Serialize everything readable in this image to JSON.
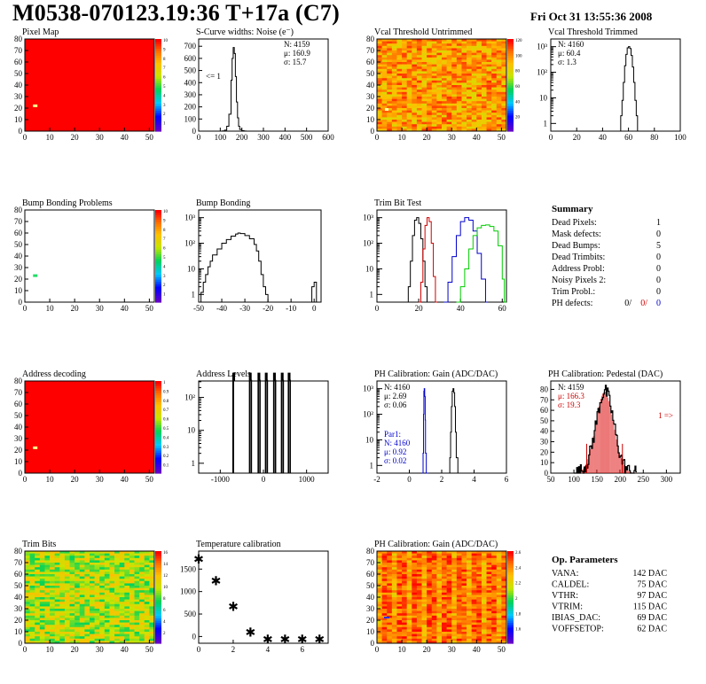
{
  "header": {
    "title": "M0538-070123.19:36 T+17a (C7)",
    "date": "Fri Oct 31 13:55:36 2008"
  },
  "colors": {
    "map_red": "#ff0000",
    "hist_red": "#d00000",
    "hist_blue": "#0000cc",
    "hist_green": "#00cc00"
  },
  "chart_data": [
    {
      "id": "pixel-map",
      "type": "heatmap",
      "title": "Pixel Map",
      "x_ticks": [
        "0",
        "10",
        "20",
        "30",
        "40",
        "50"
      ],
      "y_ticks": [
        "0",
        "10",
        "20",
        "30",
        "40",
        "50",
        "60",
        "70",
        "80"
      ],
      "xlim": [
        0,
        52
      ],
      "ylim": [
        0,
        80
      ],
      "fill": "uniform-red",
      "defects": [
        {
          "x": 4,
          "y": 22
        }
      ],
      "colorbar_ticks": [
        "1",
        "2",
        "3",
        "4",
        "5",
        "6",
        "7",
        "8",
        "9",
        "10"
      ]
    },
    {
      "id": "scurve-noise",
      "type": "line",
      "title": "S-Curve widths: Noise (e⁻)",
      "x_ticks": [
        "0",
        "100",
        "200",
        "300",
        "400",
        "500",
        "600"
      ],
      "y_ticks": [
        "0",
        "100",
        "200",
        "300",
        "400",
        "500",
        "600",
        "700"
      ],
      "xlim": [
        0,
        600
      ],
      "ylim": [
        0,
        760
      ],
      "stats": [
        "N: 4159",
        "μ: 160.9",
        "σ: 15.7"
      ],
      "annotation": "<= 1",
      "x": [
        100,
        110,
        120,
        130,
        140,
        150,
        155,
        160,
        165,
        170,
        175,
        180,
        185,
        190,
        200,
        210,
        220,
        230,
        240
      ],
      "y": [
        0,
        2,
        8,
        40,
        140,
        420,
        600,
        690,
        640,
        450,
        240,
        110,
        40,
        14,
        4,
        1,
        0,
        0,
        0
      ]
    },
    {
      "id": "vcal-untrimmed",
      "type": "heatmap",
      "title": "Vcal Threshold Untrimmed",
      "x_ticks": [
        "0",
        "10",
        "20",
        "30",
        "40",
        "50"
      ],
      "y_ticks": [
        "0",
        "10",
        "20",
        "30",
        "40",
        "50",
        "60",
        "70",
        "80"
      ],
      "xlim": [
        0,
        52
      ],
      "ylim": [
        0,
        80
      ],
      "colorbar_ticks": [
        "20",
        "40",
        "60",
        "80",
        "100",
        "120"
      ]
    },
    {
      "id": "vcal-trimmed",
      "type": "line",
      "title": "Vcal Threshold Trimmed",
      "log_y": true,
      "x_ticks": [
        "0",
        "20",
        "40",
        "60",
        "80",
        "100"
      ],
      "y_ticks": [
        "1",
        "10",
        "10²",
        "10³"
      ],
      "xlim": [
        0,
        100
      ],
      "stats": [
        "N: 4160",
        "μ: 60.4",
        "σ: 1.3"
      ],
      "x": [
        53,
        54,
        55,
        56,
        57,
        58,
        59,
        60,
        61,
        62,
        63,
        64,
        65,
        66,
        67
      ],
      "y": [
        0,
        2,
        8,
        40,
        180,
        500,
        900,
        1000,
        850,
        450,
        160,
        40,
        8,
        2,
        0
      ]
    },
    {
      "id": "bump-problems",
      "type": "heatmap",
      "title": "Bump Bonding Problems",
      "x_ticks": [
        "0",
        "10",
        "20",
        "30",
        "40",
        "50"
      ],
      "y_ticks": [
        "0",
        "10",
        "20",
        "30",
        "40",
        "50",
        "60",
        "70",
        "80"
      ],
      "xlim": [
        0,
        52
      ],
      "ylim": [
        0,
        80
      ],
      "fill": "empty",
      "defects": [
        {
          "x": 4,
          "y": 23
        }
      ],
      "colorbar_ticks": [
        "1",
        "2",
        "3",
        "4",
        "5",
        "6",
        "7",
        "8",
        "9",
        "10"
      ]
    },
    {
      "id": "bump-bonding",
      "type": "line",
      "title": "Bump Bonding",
      "log_y": true,
      "x_ticks": [
        "-50",
        "-40",
        "-30",
        "-20",
        "-10",
        "0"
      ],
      "y_ticks": [
        "1",
        "10",
        "10²",
        "10³"
      ],
      "xlim": [
        -50,
        3
      ],
      "x": [
        -50,
        -49,
        -48,
        -47,
        -46,
        -45,
        -44,
        -42,
        -40,
        -38,
        -36,
        -34,
        -33,
        -32,
        -30,
        -28,
        -26,
        -25,
        -24,
        -23,
        -22,
        -21,
        -20,
        -2,
        -1,
        0,
        1
      ],
      "y": [
        0,
        1.2,
        3,
        6,
        12,
        20,
        35,
        60,
        100,
        140,
        190,
        230,
        250,
        240,
        200,
        150,
        90,
        50,
        20,
        6,
        2,
        1,
        0,
        0,
        2,
        3,
        0
      ]
    },
    {
      "id": "trim-bit-test",
      "type": "line",
      "title": "Trim Bit Test",
      "log_y": true,
      "x_ticks": [
        "0",
        "20",
        "40",
        "60"
      ],
      "y_ticks": [
        "1",
        "10",
        "10²",
        "10³"
      ],
      "xlim": [
        0,
        62
      ],
      "series": [
        {
          "color": "#000000",
          "x": [
            14,
            15,
            16,
            17,
            18,
            19,
            20,
            21,
            22,
            23,
            24
          ],
          "y": [
            0,
            2,
            20,
            200,
            800,
            1000,
            600,
            150,
            20,
            2,
            0
          ]
        },
        {
          "color": "#d00000",
          "x": [
            20,
            21,
            22,
            23,
            24,
            25,
            26,
            27,
            28
          ],
          "y": [
            0,
            3,
            60,
            500,
            1000,
            700,
            100,
            5,
            0
          ]
        },
        {
          "color": "#0000cc",
          "x": [
            32,
            34,
            36,
            38,
            40,
            42,
            44,
            46,
            48,
            50,
            52
          ],
          "y": [
            0,
            3,
            30,
            200,
            700,
            1000,
            800,
            300,
            40,
            4,
            0
          ]
        },
        {
          "color": "#00cc00",
          "x": [
            38,
            40,
            42,
            44,
            46,
            48,
            50,
            52,
            54,
            56,
            58,
            60,
            61
          ],
          "y": [
            0,
            2,
            10,
            60,
            200,
            400,
            500,
            520,
            450,
            300,
            80,
            4,
            0
          ]
        }
      ]
    },
    {
      "id": "summary",
      "type": "table",
      "title": "Summary",
      "rows": [
        {
          "label": "Dead Pixels:",
          "value": "1"
        },
        {
          "label": "Mask defects:",
          "value": "0"
        },
        {
          "label": "Dead Bumps:",
          "value": "5"
        },
        {
          "label": "Dead Trimbits:",
          "value": "0"
        },
        {
          "label": "Address Probl:",
          "value": "0"
        },
        {
          "label": "Noisy Pixels 2:",
          "value": "0"
        },
        {
          "label": "Trim Probl.:",
          "value": "0"
        }
      ],
      "ph_label": "PH defects:",
      "ph_values": [
        "0/",
        "0/",
        "0"
      ]
    },
    {
      "id": "address-decoding",
      "type": "heatmap",
      "title": "Address decoding",
      "x_ticks": [
        "0",
        "10",
        "20",
        "30",
        "40",
        "50"
      ],
      "y_ticks": [
        "0",
        "10",
        "20",
        "30",
        "40",
        "50",
        "60",
        "70",
        "80"
      ],
      "xlim": [
        0,
        52
      ],
      "ylim": [
        0,
        80
      ],
      "fill": "uniform-red",
      "defects": [
        {
          "x": 4,
          "y": 22
        }
      ],
      "colorbar_ticks": [
        "0.1",
        "0.2",
        "0.3",
        "0.4",
        "0.5",
        "0.6",
        "0.7",
        "0.8",
        "0.9",
        "1"
      ]
    },
    {
      "id": "address-levels",
      "type": "bar",
      "title": "Address Levels",
      "log_y": true,
      "x_ticks": [
        "-1000",
        "0",
        "1000"
      ],
      "y_ticks": [
        "1",
        "10",
        "10²"
      ],
      "xlim": [
        -1500,
        1500
      ],
      "spikes": [
        {
          "x": -700,
          "y": 1000,
          "w": 8
        },
        {
          "x": -300,
          "y": 1000,
          "w": 40
        },
        {
          "x": -100,
          "y": 1000,
          "w": 40
        },
        {
          "x": 70,
          "y": 1000,
          "w": 40
        },
        {
          "x": 260,
          "y": 1000,
          "w": 40
        },
        {
          "x": 440,
          "y": 1000,
          "w": 40
        },
        {
          "x": 600,
          "y": 1000,
          "w": 40
        }
      ]
    },
    {
      "id": "ph-gain",
      "type": "line",
      "title": "PH Calibration: Gain (ADC/DAC)",
      "log_y": true,
      "x_ticks": [
        "-2",
        "0",
        "2",
        "4",
        "6"
      ],
      "y_ticks": [
        "1",
        "10",
        "10²",
        "10³"
      ],
      "xlim": [
        -2,
        6
      ],
      "stats": [
        "N: 4160",
        "μ: 2.69",
        "σ: 0.06"
      ],
      "par1_stats": [
        "Par1:",
        "N: 4160",
        "μ: 0.92",
        "σ: 0.02"
      ],
      "series": [
        {
          "color": "#000000",
          "x": [
            2.4,
            2.5,
            2.55,
            2.6,
            2.65,
            2.7,
            2.75,
            2.8,
            2.85,
            2.9,
            3.0
          ],
          "y": [
            0,
            2,
            20,
            200,
            800,
            1000,
            700,
            200,
            20,
            2,
            0
          ]
        },
        {
          "color": "#0000cc",
          "x": [
            0.8,
            0.85,
            0.88,
            0.9,
            0.92,
            0.95,
            0.98,
            1.0,
            1.05
          ],
          "y": [
            0,
            3,
            100,
            800,
            1000,
            500,
            60,
            3,
            0
          ]
        }
      ]
    },
    {
      "id": "ph-pedestal",
      "type": "bar",
      "title": "PH Calibration: Pedestal (DAC)",
      "x_ticks": [
        "50",
        "100",
        "150",
        "200",
        "250",
        "300"
      ],
      "y_ticks": [
        "0",
        "10",
        "20",
        "30",
        "40",
        "50",
        "60",
        "70",
        "80"
      ],
      "xlim": [
        50,
        330
      ],
      "ylim": [
        0,
        88
      ],
      "stats": [
        "N: 4159",
        "μ: 166.3",
        "σ: 19.3"
      ],
      "annotation": "1 =>",
      "mean": 166.3,
      "sigma": 19.3,
      "peak": 78
    },
    {
      "id": "trim-bits",
      "type": "heatmap",
      "title": "Trim Bits",
      "x_ticks": [
        "0",
        "10",
        "20",
        "30",
        "40",
        "50"
      ],
      "y_ticks": [
        "0",
        "10",
        "20",
        "30",
        "40",
        "50",
        "60",
        "70",
        "80"
      ],
      "xlim": [
        0,
        52
      ],
      "ylim": [
        0,
        80
      ],
      "colorbar_ticks": [
        "2",
        "4",
        "6",
        "8",
        "10",
        "12",
        "14",
        "16"
      ]
    },
    {
      "id": "temperature-calibration",
      "type": "scatter",
      "title": "Temperature calibration",
      "x_ticks": [
        "0",
        "2",
        "4",
        "6"
      ],
      "y_ticks": [
        "0",
        "500",
        "1000",
        "1500"
      ],
      "xlim": [
        0,
        7.5
      ],
      "ylim": [
        -150,
        1900
      ],
      "x": [
        0,
        1,
        2,
        3,
        4,
        5,
        6,
        7
      ],
      "y": [
        1720,
        1240,
        670,
        100,
        -60,
        -60,
        -60,
        -60
      ]
    },
    {
      "id": "ph-gain-map",
      "type": "heatmap",
      "title": "PH Calibration: Gain (ADC/DAC)",
      "x_ticks": [
        "0",
        "10",
        "20",
        "30",
        "40",
        "50"
      ],
      "y_ticks": [
        "0",
        "10",
        "20",
        "30",
        "40",
        "50",
        "60",
        "70",
        "80"
      ],
      "xlim": [
        0,
        52
      ],
      "ylim": [
        0,
        80
      ],
      "colorbar_ticks": [
        "1.6",
        "1.8",
        "2",
        "2.2",
        "2.4",
        "2.6"
      ]
    },
    {
      "id": "op-parameters",
      "type": "table",
      "title": "Op. Parameters",
      "rows": [
        {
          "label": "VANA:",
          "value": "142 DAC"
        },
        {
          "label": "CALDEL:",
          "value": "75 DAC"
        },
        {
          "label": "VTHR:",
          "value": "97 DAC"
        },
        {
          "label": "VTRIM:",
          "value": "115 DAC"
        },
        {
          "label": "IBIAS_DAC:",
          "value": "69 DAC"
        },
        {
          "label": "VOFFSETOP:",
          "value": "62 DAC"
        }
      ]
    }
  ]
}
